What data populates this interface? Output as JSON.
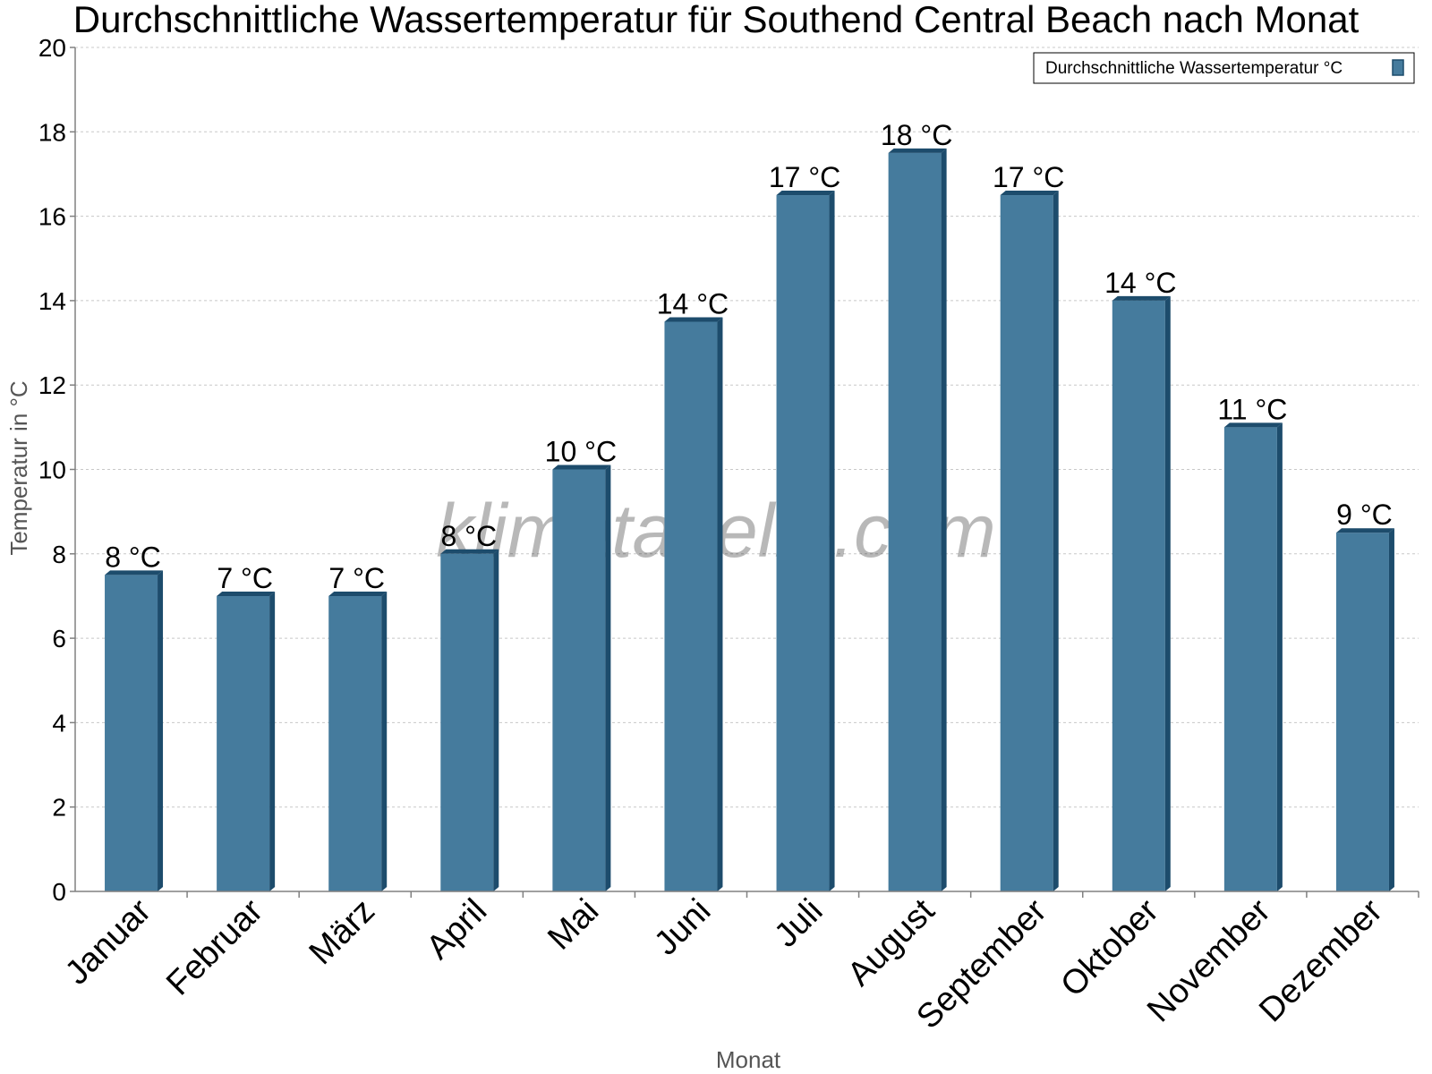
{
  "chart_data": {
    "type": "bar",
    "title": "Durchschnittliche Wassertemperatur für Southend Central Beach nach Monat",
    "xlabel": "Monat",
    "ylabel": "Temperatur in °C",
    "categories": [
      "Januar",
      "Februar",
      "März",
      "April",
      "Mai",
      "Juni",
      "Juli",
      "August",
      "September",
      "Oktober",
      "November",
      "Dezember"
    ],
    "series": [
      {
        "name": "Durchschnittliche Wassertemperatur °C",
        "values": [
          7.5,
          7,
          7,
          8,
          10,
          13.5,
          16.5,
          17.5,
          16.5,
          14,
          11,
          8.5
        ],
        "labels": [
          "8 °C",
          "7 °C",
          "7 °C",
          "8 °C",
          "10 °C",
          "14 °C",
          "17 °C",
          "18 °C",
          "17 °C",
          "14 °C",
          "11 °C",
          "9 °C"
        ]
      }
    ],
    "ylim": [
      0,
      20
    ],
    "yticks": [
      0,
      2,
      4,
      6,
      8,
      10,
      12,
      14,
      16,
      18,
      20
    ],
    "grid": true,
    "legend_position": "top-right",
    "colors": {
      "bar_front": "#457b9d",
      "bar_side": "#1d4c6c",
      "bar_top": "#1d4c6c",
      "grid": "#c8c8c8",
      "axis": "#808080"
    }
  },
  "watermark": "klimatabelle.com"
}
